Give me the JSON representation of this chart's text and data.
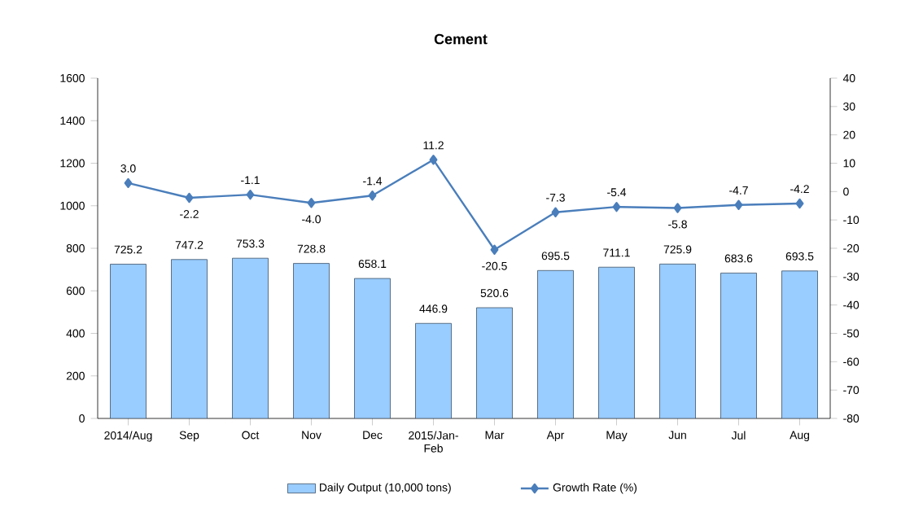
{
  "chart_data": {
    "type": "bar",
    "title": "Cement",
    "categories": [
      "2014/Aug",
      "Sep",
      "Oct",
      "Nov",
      "Dec",
      "2015/Jan-Feb",
      "Mar",
      "Apr",
      "May",
      "Jun",
      "Jul",
      "Aug"
    ],
    "series": [
      {
        "name": "Daily Output (10,000 tons)",
        "color": "#99ccff",
        "values": [
          725.2,
          747.2,
          753.3,
          728.8,
          658.1,
          446.9,
          520.6,
          695.5,
          711.1,
          725.9,
          683.6,
          693.5
        ]
      },
      {
        "name": "Growth Rate (%)",
        "type": "line",
        "axis": "y2",
        "color": "#4a7ebb",
        "values": [
          3.0,
          -2.2,
          -1.1,
          -4.0,
          -1.4,
          11.2,
          -20.5,
          -7.3,
          -5.4,
          -5.8,
          -4.7,
          -4.2
        ],
        "value_labels": [
          "3.0",
          "-2.2",
          "-1.1",
          "-4.0",
          "-1.4",
          "11.2",
          "-20.5",
          "-7.3",
          "-5.4",
          "-5.8",
          "-4.7",
          "-4.2"
        ]
      }
    ],
    "ylim": [
      0,
      1600
    ],
    "yticks": [
      0,
      200,
      400,
      600,
      800,
      1000,
      1200,
      1400,
      1600
    ],
    "y2lim": [
      -80,
      40
    ],
    "y2ticks": [
      -80,
      -70,
      -60,
      -50,
      -40,
      -30,
      -20,
      -10,
      0,
      10,
      20,
      30,
      40
    ],
    "data_labels": true,
    "marker": "diamond",
    "legend": "bottom",
    "grid": false
  }
}
